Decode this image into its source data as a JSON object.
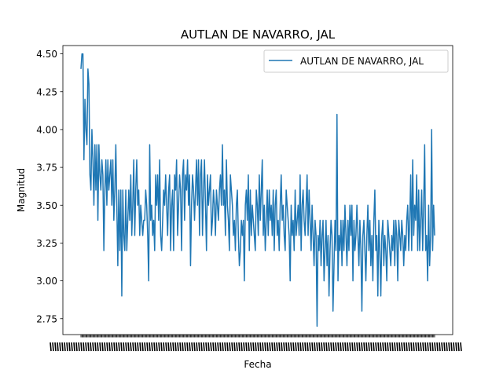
{
  "chart_data": {
    "type": "line",
    "title": "AUTLAN DE NAVARRO, JAL",
    "xlabel": "Fecha",
    "ylabel": "Magnitud",
    "ylim": [
      2.645,
      4.555
    ],
    "yticks": [
      "2.75",
      "3.00",
      "3.25",
      "3.50",
      "3.75",
      "4.00",
      "4.25",
      "4.50"
    ],
    "grid": false,
    "legend": "top-right",
    "line_color": "#1f77b4",
    "series": [
      {
        "name": "AUTLAN DE NAVARRO, JAL",
        "values": [
          4.4,
          4.5,
          4.5,
          3.8,
          4.2,
          4.0,
          3.9,
          4.4,
          4.3,
          3.7,
          3.6,
          4.0,
          3.8,
          3.5,
          3.9,
          3.6,
          3.9,
          3.4,
          3.9,
          3.7,
          3.6,
          3.8,
          3.7,
          3.2,
          3.6,
          3.8,
          3.5,
          3.8,
          3.6,
          3.7,
          3.8,
          3.5,
          3.8,
          3.4,
          3.6,
          3.9,
          3.5,
          3.1,
          3.6,
          3.2,
          3.6,
          2.9,
          3.6,
          3.3,
          3.2,
          3.6,
          3.2,
          3.4,
          3.6,
          3.4,
          3.7,
          3.3,
          3.5,
          3.8,
          3.3,
          3.6,
          3.8,
          3.5,
          3.6,
          3.3,
          3.5,
          3.4,
          3.3,
          3.4,
          3.4,
          3.6,
          3.5,
          3.3,
          3.0,
          3.9,
          3.4,
          3.5,
          3.3,
          3.4,
          3.2,
          3.7,
          3.5,
          3.7,
          3.4,
          3.8,
          3.3,
          3.2,
          3.4,
          3.6,
          3.5,
          3.7,
          3.5,
          3.3,
          3.6,
          3.7,
          3.2,
          3.5,
          3.6,
          3.2,
          3.7,
          3.6,
          3.8,
          3.3,
          3.5,
          3.7,
          3.6,
          3.2,
          3.7,
          3.8,
          3.4,
          3.7,
          3.6,
          3.8,
          3.5,
          3.7,
          3.1,
          3.5,
          3.7,
          3.6,
          3.4,
          3.6,
          3.8,
          3.5,
          3.8,
          3.3,
          3.7,
          3.8,
          3.3,
          3.6,
          3.8,
          3.5,
          3.2,
          3.7,
          3.5,
          3.6,
          3.7,
          3.3,
          3.4,
          3.6,
          3.5,
          3.3,
          3.6,
          3.5,
          3.4,
          3.6,
          3.7,
          3.5,
          3.9,
          3.5,
          3.6,
          3.3,
          3.8,
          3.5,
          3.4,
          3.2,
          3.7,
          3.6,
          3.5,
          3.3,
          3.4,
          3.2,
          3.5,
          3.6,
          3.3,
          3.1,
          3.2,
          3.4,
          3.3,
          3.4,
          3.0,
          3.5,
          3.6,
          3.4,
          3.7,
          3.2,
          3.6,
          3.3,
          3.5,
          3.4,
          3.3,
          3.2,
          3.6,
          3.5,
          3.3,
          3.7,
          3.4,
          3.6,
          3.8,
          3.3,
          3.5,
          3.2,
          3.4,
          3.6,
          3.3,
          3.6,
          3.4,
          3.5,
          3.3,
          3.6,
          3.2,
          3.5,
          3.6,
          3.3,
          3.4,
          3.2,
          3.5,
          3.7,
          3.4,
          3.5,
          3.3,
          3.2,
          3.6,
          3.5,
          3.4,
          3.3,
          3.0,
          3.5,
          3.3,
          3.4,
          3.2,
          3.6,
          3.3,
          3.4,
          3.5,
          3.3,
          3.7,
          3.2,
          3.5,
          3.6,
          3.4,
          3.3,
          3.5,
          3.7,
          3.3,
          3.6,
          3.4,
          3.2,
          3.5,
          3.3,
          3.1,
          3.4,
          3.3,
          2.7,
          3.3,
          3.2,
          3.4,
          3.1,
          3.3,
          3.4,
          3.0,
          3.2,
          3.4,
          3.1,
          3.3,
          2.9,
          3.2,
          3.4,
          3.3,
          2.8,
          3.1,
          3.4,
          3.2,
          4.1,
          3.0,
          3.3,
          3.2,
          3.4,
          3.1,
          3.4,
          3.2,
          3.5,
          3.3,
          3.1,
          3.4,
          3.2,
          3.5,
          3.3,
          3.5,
          3.0,
          3.4,
          3.2,
          3.3,
          3.5,
          3.3,
          3.1,
          3.4,
          3.2,
          2.8,
          3.3,
          3.4,
          3.2,
          3.0,
          3.3,
          3.5,
          3.2,
          3.4,
          3.1,
          3.3,
          3.0,
          3.4,
          3.6,
          3.2,
          3.3,
          2.9,
          3.4,
          3.2,
          2.9,
          3.3,
          3.4,
          3.1,
          3.3,
          3.2,
          3.0,
          3.4,
          3.3,
          3.2,
          3.1,
          3.3,
          3.2,
          3.4,
          3.1,
          3.4,
          3.3,
          3.0,
          3.4,
          3.3,
          3.2,
          3.4,
          3.3,
          3.1,
          3.3,
          3.2,
          3.4,
          3.5,
          3.2,
          3.4,
          3.7,
          3.2,
          3.8,
          3.3,
          3.5,
          3.4,
          3.7,
          3.2,
          3.6,
          3.2,
          3.4,
          3.6,
          3.2,
          3.5,
          3.9,
          3.2,
          3.3,
          3.0,
          3.5,
          3.1,
          3.3,
          4.0,
          3.2,
          3.5,
          3.3
        ]
      }
    ]
  }
}
